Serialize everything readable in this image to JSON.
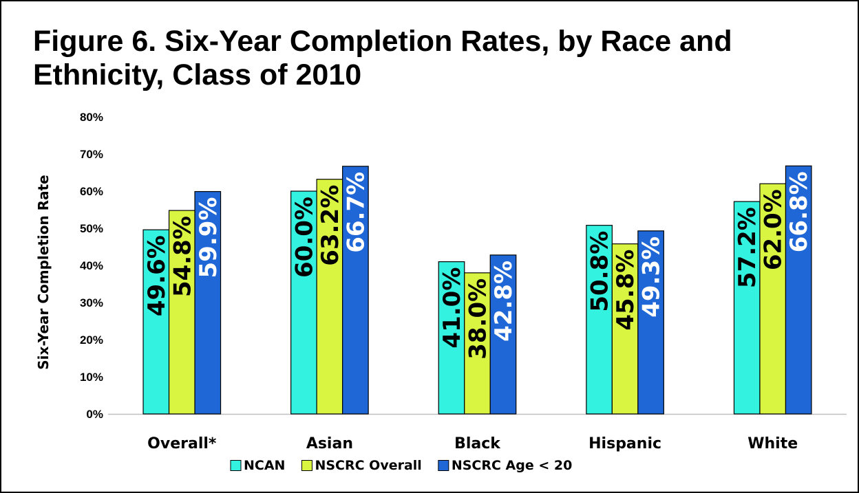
{
  "chart_data": {
    "type": "bar",
    "title": "Figure 6. Six-Year Completion Rates, by Race and Ethnicity, Class of 2010",
    "ylabel": "Six-Year Completion Rate",
    "xlabel": "",
    "ylim": [
      0,
      80
    ],
    "yticks": [
      "0%",
      "10%",
      "20%",
      "30%",
      "40%",
      "50%",
      "60%",
      "70%",
      "80%"
    ],
    "grid": false,
    "legend_position": "bottom",
    "categories": [
      "Overall*",
      "Asian",
      "Black",
      "Hispanic",
      "White"
    ],
    "series": [
      {
        "name": "NCAN",
        "color": "#33f2e0",
        "label_color": "#000000",
        "values": [
          49.6,
          60.0,
          41.0,
          50.8,
          57.2
        ],
        "labels": [
          "49.6%",
          "60.0%",
          "41.0%",
          "50.8%",
          "57.2%"
        ]
      },
      {
        "name": "NSCRC Overall",
        "color": "#d9f542",
        "label_color": "#000000",
        "values": [
          54.8,
          63.2,
          38.0,
          45.8,
          62.0
        ],
        "labels": [
          "54.8%",
          "63.2%",
          "38.0%",
          "45.8%",
          "62.0%"
        ]
      },
      {
        "name": "NSCRC Age < 20",
        "color": "#1f67d6",
        "label_color": "#ffffff",
        "values": [
          59.9,
          66.7,
          42.8,
          49.3,
          66.8
        ],
        "labels": [
          "59.9%",
          "66.7%",
          "42.8%",
          "49.3%",
          "66.8%"
        ]
      }
    ]
  }
}
